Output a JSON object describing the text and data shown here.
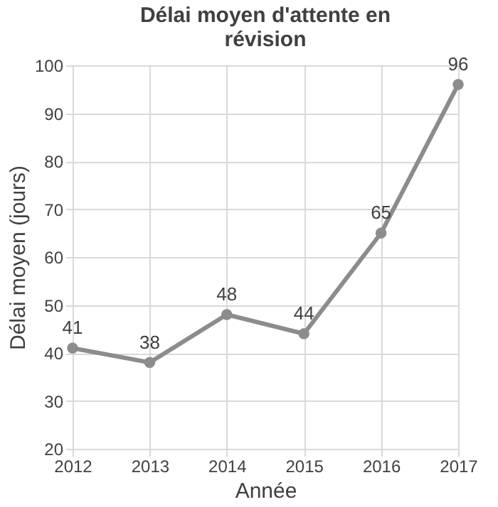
{
  "chart_data": {
    "type": "line",
    "title": "Délai moyen d'attente en révision",
    "xlabel": "Année",
    "ylabel": "Délai moyen (jours)",
    "x": [
      2012,
      2013,
      2014,
      2015,
      2016,
      2017
    ],
    "series": [
      {
        "color": "#8c8c8c",
        "values": [
          41,
          38,
          48,
          44,
          65,
          96
        ]
      }
    ],
    "xlim": [
      2012,
      2017
    ],
    "xticks": [
      2012,
      2013,
      2014,
      2015,
      2016,
      2017
    ],
    "ylim": [
      20,
      100
    ],
    "yticks": [
      20,
      30,
      40,
      50,
      60,
      70,
      80,
      90,
      100
    ],
    "grid": true,
    "marker": "circle",
    "line_style": "solid",
    "data_labels": true
  }
}
